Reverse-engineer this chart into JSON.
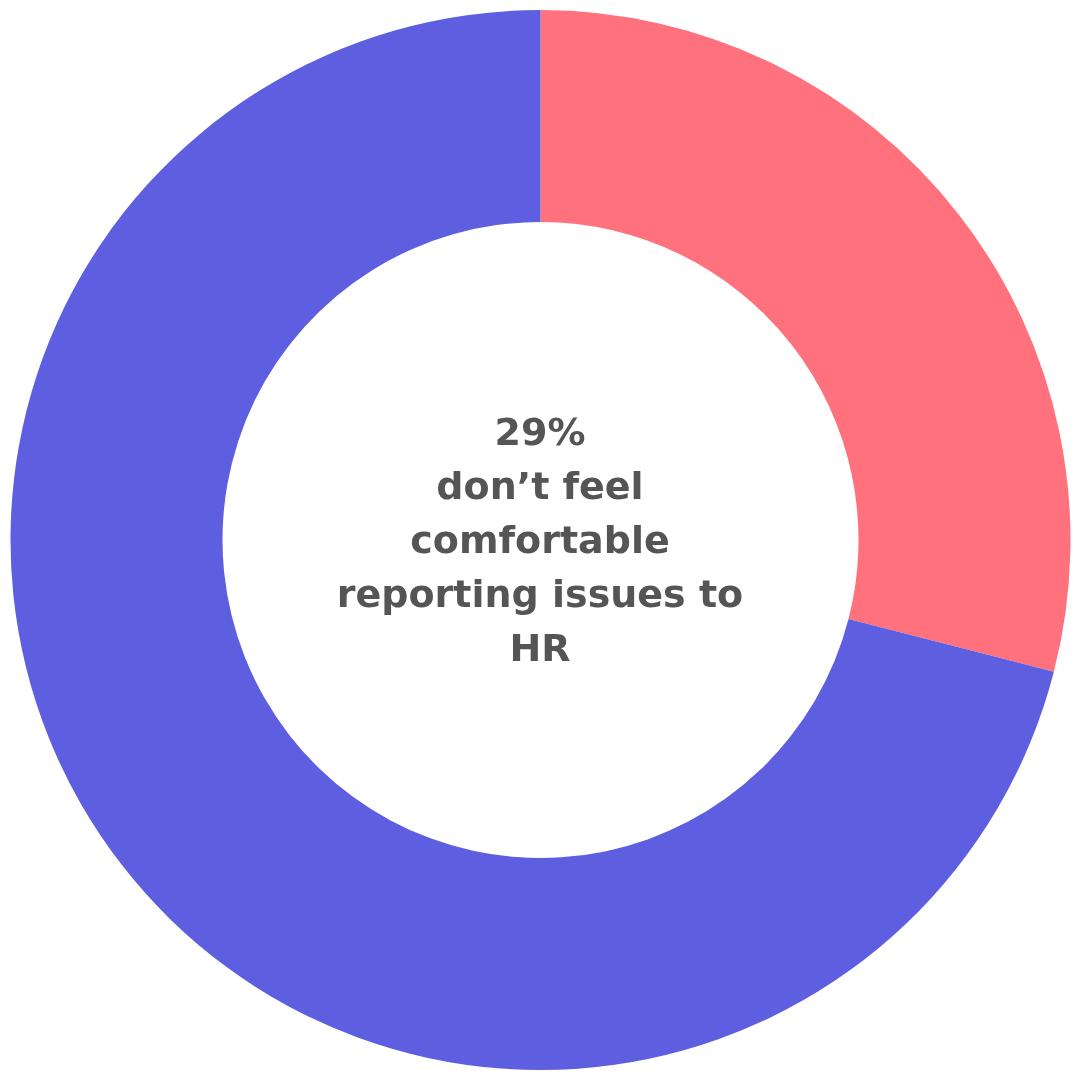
{
  "chart_data": {
    "type": "donut",
    "categories": [
      null,
      null
    ],
    "values": [
      29,
      71
    ],
    "colors": [
      "#ff717d",
      "#5d5ee0"
    ],
    "annotations": [
      "29%",
      "don’t feel comfortable reporting issues to HR"
    ]
  }
}
